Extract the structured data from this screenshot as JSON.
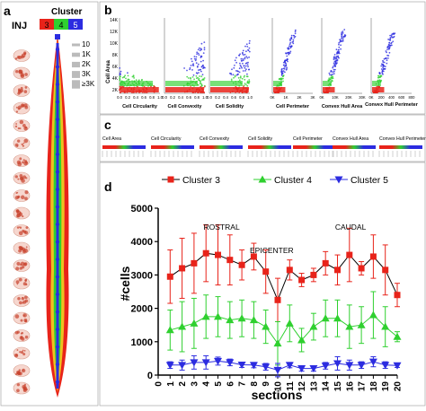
{
  "panels": {
    "a": "a",
    "b": "b",
    "c": "c",
    "d": "d"
  },
  "panel_a": {
    "inj_label": "INJ",
    "cluster_title": "Cluster",
    "cluster_labels": [
      "3",
      "4",
      "5"
    ],
    "cluster_colors": [
      "#e8231a",
      "#2fd02f",
      "#2c2ce0"
    ],
    "size_legend": [
      "10",
      "1K",
      "2K",
      "3K",
      "≥3K"
    ]
  },
  "panel_b": {
    "ylabel": "Cell Area",
    "yticks": [
      "14K",
      "12K",
      "10K",
      "8K",
      "6K",
      "4K",
      "2K"
    ],
    "subplots": [
      {
        "xlabel": "Cell Circularity",
        "xticks": [
          "0.0",
          "0.2",
          "0.4",
          "0.6",
          "0.8",
          "1.0"
        ]
      },
      {
        "xlabel": "Cell Convexity",
        "xticks": [
          "0.0",
          "0.2",
          "0.4",
          "0.6",
          "0.8",
          "1.0"
        ]
      },
      {
        "xlabel": "Cell Solidity",
        "xticks": [
          "0.0",
          "0.2",
          "0.4",
          "0.6",
          "0.8",
          "1.0"
        ]
      },
      {
        "xlabel": "Cell Perimeter",
        "xticks": [
          "0K",
          "1K",
          "2K",
          "3K"
        ]
      },
      {
        "xlabel": "Convex Hull Area",
        "xticks": [
          "0K",
          "10K",
          "20K",
          "30K"
        ]
      },
      {
        "xlabel": "Convex Hull Perimeter",
        "xticks": [
          "0K",
          "200",
          "400",
          "600",
          "800"
        ]
      }
    ]
  },
  "panel_c": {
    "labels": [
      "Cell Area",
      "Cell Circularity",
      "Cell Convexity",
      "Cell Solidity",
      "Cell Perimeter",
      "Convex Hull Area",
      "Convex Hull Perimeter"
    ]
  },
  "chart_data": {
    "type": "line",
    "title": "",
    "xlabel": "sections",
    "ylabel": "#cells",
    "x": [
      0,
      1,
      2,
      3,
      4,
      5,
      6,
      7,
      8,
      9,
      10,
      11,
      12,
      13,
      14,
      15,
      16,
      17,
      18,
      19,
      20
    ],
    "xlim": [
      0,
      20
    ],
    "ylim": [
      0,
      5000
    ],
    "yticks": [
      0,
      1000,
      2000,
      3000,
      4000,
      5000
    ],
    "legend_position": "top",
    "annotations": [
      "ROSTRAL",
      "EPICENTER",
      "CAUDAL"
    ],
    "series": [
      {
        "name": "Cluster 3",
        "color": "#e8231a",
        "marker": "square",
        "x": [
          1,
          2,
          3,
          4,
          5,
          6,
          7,
          8,
          9,
          10,
          11,
          12,
          13,
          14,
          15,
          16,
          17,
          18,
          19,
          20
        ],
        "values": [
          2950,
          3200,
          3350,
          3650,
          3600,
          3450,
          3300,
          3550,
          3100,
          2250,
          3150,
          2850,
          3000,
          3350,
          3150,
          3600,
          3200,
          3550,
          3150,
          2400
        ],
        "errors": [
          800,
          900,
          900,
          850,
          900,
          750,
          450,
          400,
          650,
          650,
          300,
          200,
          200,
          350,
          450,
          800,
          200,
          650,
          750,
          350
        ]
      },
      {
        "name": "Cluster 4",
        "color": "#2fd02f",
        "marker": "triangle-up",
        "x": [
          1,
          2,
          3,
          4,
          5,
          6,
          7,
          8,
          9,
          10,
          11,
          12,
          13,
          14,
          15,
          16,
          17,
          18,
          19,
          20
        ],
        "values": [
          1350,
          1450,
          1550,
          1750,
          1750,
          1650,
          1700,
          1650,
          1450,
          950,
          1550,
          1050,
          1450,
          1700,
          1700,
          1450,
          1500,
          1800,
          1450,
          1150
        ],
        "errors": [
          600,
          750,
          750,
          650,
          600,
          550,
          550,
          550,
          500,
          650,
          550,
          350,
          400,
          550,
          550,
          650,
          550,
          700,
          600,
          150
        ]
      },
      {
        "name": "Cluster 5",
        "color": "#2c2ce0",
        "marker": "triangle-down",
        "x": [
          1,
          2,
          3,
          4,
          5,
          6,
          7,
          8,
          9,
          10,
          11,
          12,
          13,
          14,
          15,
          16,
          17,
          18,
          19,
          20
        ],
        "values": [
          300,
          300,
          380,
          380,
          420,
          380,
          310,
          300,
          250,
          150,
          300,
          200,
          200,
          280,
          350,
          300,
          300,
          400,
          300,
          290
        ],
        "errors": [
          100,
          150,
          200,
          200,
          120,
          100,
          80,
          80,
          100,
          200,
          80,
          80,
          80,
          100,
          200,
          150,
          100,
          150,
          100,
          60
        ]
      }
    ]
  }
}
